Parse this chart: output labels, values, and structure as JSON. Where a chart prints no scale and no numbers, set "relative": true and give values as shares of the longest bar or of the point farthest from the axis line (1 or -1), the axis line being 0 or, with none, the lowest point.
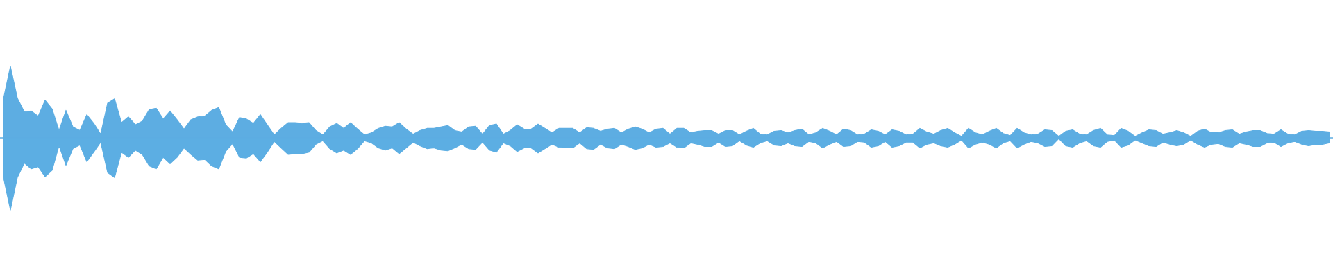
{
  "chart_data": {
    "type": "area",
    "relative": true,
    "categories": [
      null,
      null,
      null,
      null,
      null,
      null,
      null,
      null,
      null,
      null,
      null,
      null,
      null,
      null,
      null,
      null,
      null,
      null,
      null,
      null,
      null,
      null,
      null,
      null,
      null,
      null,
      null,
      null,
      null,
      null,
      null,
      null,
      null,
      null,
      null,
      null,
      null,
      null,
      null,
      null,
      null,
      null,
      null,
      null,
      null,
      null,
      null,
      null,
      null,
      null,
      null,
      null,
      null,
      null,
      null,
      null,
      null,
      null,
      null,
      null,
      null,
      null,
      null,
      null,
      null,
      null,
      null,
      null,
      null,
      null,
      null,
      null,
      null,
      null,
      null,
      null,
      null,
      null,
      null,
      null,
      null,
      null,
      null,
      null,
      null,
      null,
      null,
      null,
      null,
      null,
      null,
      null,
      null,
      null,
      null,
      null,
      null,
      null,
      null,
      null,
      null,
      null,
      null,
      null,
      null,
      null,
      null,
      null,
      null,
      null,
      null,
      null,
      null,
      null,
      null,
      null,
      null,
      null,
      null,
      null,
      null,
      null,
      null,
      null,
      null,
      null,
      null,
      null,
      null,
      null,
      null,
      null,
      null,
      null,
      null,
      null,
      null,
      null,
      null,
      null,
      null,
      null,
      null,
      null,
      null,
      null,
      null,
      null,
      null,
      null,
      null,
      null,
      null,
      null,
      null,
      null,
      null,
      null,
      null,
      null,
      null,
      null,
      null,
      null,
      null,
      null,
      null,
      null,
      null,
      null,
      null,
      null,
      null,
      null,
      null,
      null,
      null,
      null,
      null,
      null,
      null,
      null,
      null,
      null,
      null,
      null,
      null,
      null,
      null,
      null,
      null,
      null
    ],
    "series": [
      {
        "color": "#5dade2",
        "values": [
          0.54,
          0.99,
          0.55,
          0.36,
          0.37,
          0.3,
          0.52,
          0.4,
          0.1,
          0.38,
          0.15,
          0.1,
          0.32,
          0.2,
          0.05,
          0.48,
          0.54,
          0.21,
          0.29,
          0.18,
          0.23,
          0.39,
          0.41,
          0.26,
          0.37,
          0.25,
          0.12,
          0.25,
          0.29,
          0.3,
          0.38,
          0.42,
          0.18,
          0.08,
          0.28,
          0.26,
          0.2,
          0.32,
          0.18,
          0.04,
          0.13,
          0.21,
          0.21,
          0.2,
          0.21,
          0.1,
          0.04,
          0.15,
          0.2,
          0.13,
          0.21,
          0.12,
          0.04,
          0.07,
          0.13,
          0.16,
          0.15,
          0.21,
          0.12,
          0.05,
          0.1,
          0.13,
          0.13,
          0.15,
          0.17,
          0.1,
          0.08,
          0.15,
          0.16,
          0.05,
          0.17,
          0.19,
          0.05,
          0.1,
          0.18,
          0.12,
          0.12,
          0.19,
          0.13,
          0.07,
          0.13,
          0.13,
          0.13,
          0.07,
          0.14,
          0.13,
          0.09,
          0.12,
          0.13,
          0.07,
          0.12,
          0.15,
          0.12,
          0.07,
          0.12,
          0.13,
          0.05,
          0.13,
          0.13,
          0.07,
          0.09,
          0.1,
          0.1,
          0.05,
          0.1,
          0.1,
          0.04,
          0.09,
          0.13,
          0.05,
          0.04,
          0.09,
          0.1,
          0.07,
          0.1,
          0.12,
          0.04,
          0.07,
          0.13,
          0.09,
          0.04,
          0.12,
          0.1,
          0.04,
          0.05,
          0.11,
          0.09,
          0.04,
          0.11,
          0.09,
          0.04,
          0.05,
          0.13,
          0.08,
          0.05,
          0.1,
          0.13,
          0.07,
          0.02,
          0.13,
          0.07,
          0.04,
          0.09,
          0.13,
          0.06,
          0.03,
          0.13,
          0.07,
          0.04,
          0.05,
          0.11,
          0.1,
          0.02,
          0.09,
          0.11,
          0.05,
          0.04,
          0.1,
          0.13,
          0.04,
          0.03,
          0.13,
          0.09,
          0.02,
          0.07,
          0.11,
          0.1,
          0.05,
          0.07,
          0.1,
          0.07,
          0.02,
          0.09,
          0.12,
          0.07,
          0.07,
          0.1,
          0.11,
          0.05,
          0.08,
          0.1,
          0.1,
          0.06,
          0.05,
          0.11,
          0.05,
          0.04,
          0.09,
          0.1,
          0.09,
          0.09,
          0.08
        ]
      },
      {
        "color": "#5caee3",
        "values": [
          -0.55,
          -1,
          -0.55,
          -0.35,
          -0.43,
          -0.4,
          -0.54,
          -0.45,
          -0.11,
          -0.38,
          -0.15,
          -0.1,
          -0.33,
          -0.2,
          -0.06,
          -0.48,
          -0.55,
          -0.2,
          -0.27,
          -0.17,
          -0.23,
          -0.39,
          -0.43,
          -0.27,
          -0.36,
          -0.27,
          -0.14,
          -0.23,
          -0.31,
          -0.3,
          -0.39,
          -0.43,
          -0.19,
          -0.08,
          -0.27,
          -0.28,
          -0.22,
          -0.33,
          -0.2,
          -0.05,
          -0.14,
          -0.23,
          -0.22,
          -0.22,
          -0.2,
          -0.09,
          -0.04,
          -0.15,
          -0.21,
          -0.17,
          -0.23,
          -0.15,
          -0.04,
          -0.07,
          -0.14,
          -0.17,
          -0.14,
          -0.22,
          -0.14,
          -0.06,
          -0.11,
          -0.15,
          -0.14,
          -0.17,
          -0.18,
          -0.14,
          -0.09,
          -0.15,
          -0.16,
          -0.06,
          -0.17,
          -0.2,
          -0.07,
          -0.11,
          -0.19,
          -0.14,
          -0.14,
          -0.21,
          -0.15,
          -0.09,
          -0.13,
          -0.14,
          -0.14,
          -0.07,
          -0.15,
          -0.16,
          -0.09,
          -0.14,
          -0.15,
          -0.09,
          -0.12,
          -0.16,
          -0.14,
          -0.09,
          -0.13,
          -0.12,
          -0.07,
          -0.13,
          -0.14,
          -0.07,
          -0.09,
          -0.12,
          -0.12,
          -0.06,
          -0.12,
          -0.11,
          -0.04,
          -0.1,
          -0.13,
          -0.07,
          -0.04,
          -0.1,
          -0.11,
          -0.07,
          -0.11,
          -0.12,
          -0.05,
          -0.07,
          -0.14,
          -0.09,
          -0.05,
          -0.12,
          -0.11,
          -0.05,
          -0.06,
          -0.13,
          -0.11,
          -0.05,
          -0.13,
          -0.11,
          -0.06,
          -0.06,
          -0.14,
          -0.09,
          -0.07,
          -0.11,
          -0.13,
          -0.09,
          -0.03,
          -0.14,
          -0.09,
          -0.06,
          -0.09,
          -0.14,
          -0.07,
          -0.04,
          -0.14,
          -0.09,
          -0.05,
          -0.07,
          -0.12,
          -0.11,
          -0.01,
          -0.11,
          -0.13,
          -0.07,
          -0.04,
          -0.11,
          -0.13,
          -0.05,
          -0.03,
          -0.13,
          -0.1,
          -0.03,
          -0.07,
          -0.11,
          -0.12,
          -0.06,
          -0.09,
          -0.11,
          -0.09,
          -0.03,
          -0.09,
          -0.13,
          -0.09,
          -0.08,
          -0.12,
          -0.13,
          -0.07,
          -0.09,
          -0.12,
          -0.12,
          -0.07,
          -0.06,
          -0.12,
          -0.07,
          -0.05,
          -0.09,
          -0.11,
          -0.09,
          -0.09,
          -0.07
        ]
      }
    ],
    "ref_lines": [
      {
        "axis": "y",
        "value": 0,
        "color": "#5dade2",
        "line_style": "solid"
      }
    ]
  }
}
